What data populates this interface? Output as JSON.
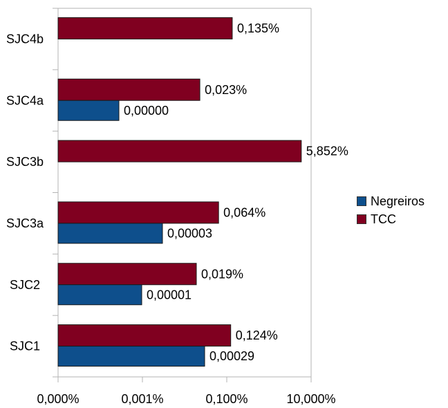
{
  "chart_data": {
    "type": "bar",
    "orientation": "horizontal",
    "x_scale": "log",
    "grid": false,
    "legend_position": "right",
    "categories": [
      "SJC4b",
      "SJC4a",
      "SJC3b",
      "SJC3a",
      "SJC2",
      "SJC1"
    ],
    "series": [
      {
        "name": "TCC",
        "color": "#800020",
        "values": [
          0.135,
          0.023,
          5.852,
          0.064,
          0.019,
          0.124
        ],
        "labels": [
          "0,135%",
          "0,023%",
          "5,852%",
          "0,064%",
          "0,019%",
          "0,124%"
        ]
      },
      {
        "name": "Negreiros",
        "color": "#0e4f8c",
        "values": [
          null,
          0.0,
          null,
          3e-05,
          1e-05,
          0.00029
        ],
        "labels": [
          "",
          "0,00000",
          "",
          "0,00003",
          "0,00001",
          "0,00029"
        ]
      }
    ],
    "x_ticks": [
      {
        "value": 0.0001,
        "label": "0,000%"
      },
      {
        "value": 0.001,
        "label": "0,001%"
      },
      {
        "value": 0.1,
        "label": "0,100%"
      },
      {
        "value": 10,
        "label": "10,000%"
      }
    ],
    "legend": [
      "Negreiros",
      "TCC"
    ]
  }
}
